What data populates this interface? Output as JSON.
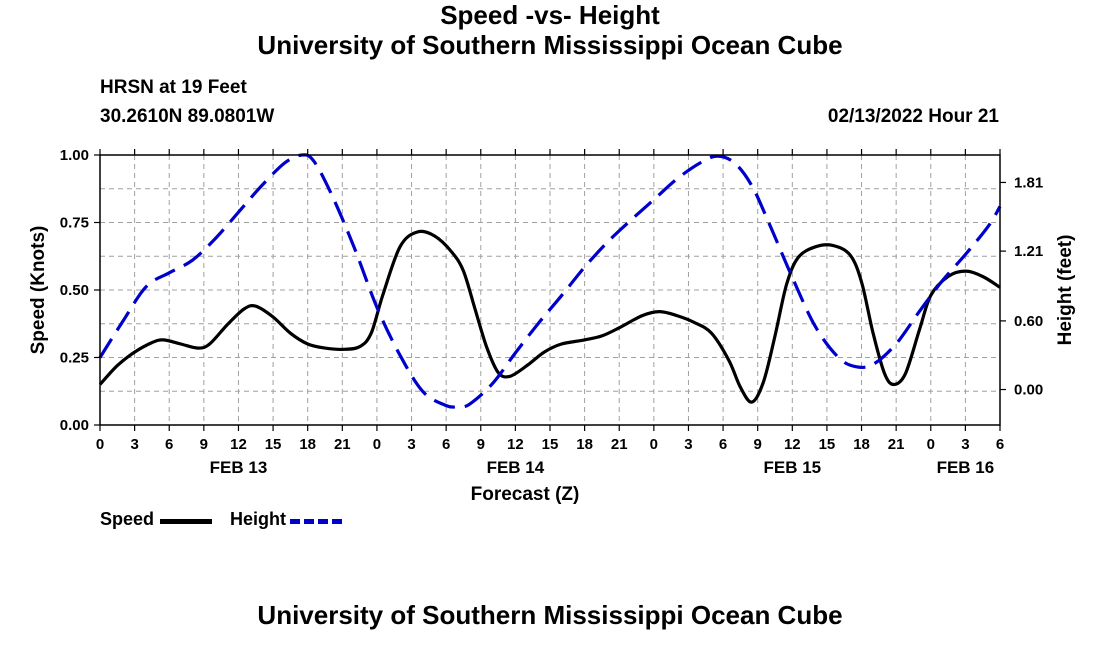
{
  "page": {
    "title": "University of Southern Mississippi Ocean Cube",
    "station": "HRSN at 19 Feet",
    "coords": "30.2610N  89.0801W",
    "subtitle": "Speed -vs- Height",
    "datetime": "02/13/2022 Hour 21",
    "footer_title": "University of Southern Mississippi Ocean Cube"
  },
  "legend": {
    "speed_label": "Speed",
    "height_label": "Height"
  },
  "colors": {
    "speed": "#000000",
    "height": "#0000cc",
    "grid": "#a0a0a0"
  },
  "chart_data": {
    "type": "line",
    "title": "Speed -vs- Height",
    "xlabel": "Forecast (Z)",
    "ylabel": "Speed (Knots)",
    "ylabel_right": "Height (feet)",
    "x_unit": "hours from FEB 13 00Z",
    "xlim": [
      0,
      78
    ],
    "ylim": [
      0,
      1.0
    ],
    "ylim_right": [
      -0.31,
      2.05
    ],
    "x_ticks": [
      {
        "x": 0,
        "label": "0"
      },
      {
        "x": 3,
        "label": "3"
      },
      {
        "x": 6,
        "label": "6"
      },
      {
        "x": 9,
        "label": "9"
      },
      {
        "x": 12,
        "label": "12"
      },
      {
        "x": 15,
        "label": "15"
      },
      {
        "x": 18,
        "label": "18"
      },
      {
        "x": 21,
        "label": "21"
      },
      {
        "x": 24,
        "label": "0"
      },
      {
        "x": 27,
        "label": "3"
      },
      {
        "x": 30,
        "label": "6"
      },
      {
        "x": 33,
        "label": "9"
      },
      {
        "x": 36,
        "label": "12"
      },
      {
        "x": 39,
        "label": "15"
      },
      {
        "x": 42,
        "label": "18"
      },
      {
        "x": 45,
        "label": "21"
      },
      {
        "x": 48,
        "label": "0"
      },
      {
        "x": 51,
        "label": "3"
      },
      {
        "x": 54,
        "label": "6"
      },
      {
        "x": 57,
        "label": "9"
      },
      {
        "x": 60,
        "label": "12"
      },
      {
        "x": 63,
        "label": "15"
      },
      {
        "x": 66,
        "label": "18"
      },
      {
        "x": 69,
        "label": "21"
      },
      {
        "x": 72,
        "label": "0"
      },
      {
        "x": 75,
        "label": "3"
      },
      {
        "x": 78,
        "label": "6"
      }
    ],
    "date_labels": [
      {
        "x": 12,
        "label": "FEB 13"
      },
      {
        "x": 36,
        "label": "FEB 14"
      },
      {
        "x": 60,
        "label": "FEB 15"
      },
      {
        "x": 75,
        "label": "FEB 16"
      }
    ],
    "y_ticks_left": [
      {
        "v": 0.0,
        "label": "0.00"
      },
      {
        "v": 0.25,
        "label": "0.25"
      },
      {
        "v": 0.5,
        "label": "0.50"
      },
      {
        "v": 0.75,
        "label": "0.75"
      },
      {
        "v": 1.0,
        "label": "1.00"
      }
    ],
    "y_ticks_right": [
      {
        "v": 0.0,
        "label": "0.00"
      },
      {
        "v": 0.6,
        "label": "0.60"
      },
      {
        "v": 1.21,
        "label": "1.21"
      },
      {
        "v": 1.81,
        "label": "1.81"
      }
    ],
    "series": [
      {
        "name": "Speed",
        "axis": "left",
        "style": "solid",
        "points": [
          [
            0,
            0.15
          ],
          [
            1.5,
            0.22
          ],
          [
            3,
            0.27
          ],
          [
            4.5,
            0.305
          ],
          [
            5.5,
            0.315
          ],
          [
            7,
            0.3
          ],
          [
            8.5,
            0.285
          ],
          [
            9.5,
            0.3
          ],
          [
            11,
            0.37
          ],
          [
            12.5,
            0.43
          ],
          [
            13.5,
            0.44
          ],
          [
            15,
            0.4
          ],
          [
            16.5,
            0.34
          ],
          [
            18,
            0.3
          ],
          [
            19.5,
            0.285
          ],
          [
            21,
            0.28
          ],
          [
            22.5,
            0.29
          ],
          [
            23.5,
            0.34
          ],
          [
            24.5,
            0.48
          ],
          [
            26,
            0.66
          ],
          [
            27.5,
            0.715
          ],
          [
            29,
            0.7
          ],
          [
            30.5,
            0.64
          ],
          [
            31.5,
            0.57
          ],
          [
            32.5,
            0.43
          ],
          [
            33.5,
            0.29
          ],
          [
            34.5,
            0.195
          ],
          [
            35.5,
            0.18
          ],
          [
            37,
            0.22
          ],
          [
            38.5,
            0.27
          ],
          [
            40,
            0.3
          ],
          [
            42,
            0.315
          ],
          [
            43.5,
            0.33
          ],
          [
            45,
            0.36
          ],
          [
            47,
            0.405
          ],
          [
            48.5,
            0.42
          ],
          [
            50,
            0.405
          ],
          [
            51.5,
            0.38
          ],
          [
            53,
            0.34
          ],
          [
            54.5,
            0.24
          ],
          [
            55.5,
            0.14
          ],
          [
            56.5,
            0.085
          ],
          [
            57.5,
            0.16
          ],
          [
            58.5,
            0.33
          ],
          [
            59.5,
            0.52
          ],
          [
            60.5,
            0.62
          ],
          [
            62,
            0.66
          ],
          [
            63.5,
            0.665
          ],
          [
            65,
            0.63
          ],
          [
            66,
            0.53
          ],
          [
            67,
            0.34
          ],
          [
            68,
            0.19
          ],
          [
            68.8,
            0.15
          ],
          [
            69.8,
            0.19
          ],
          [
            71,
            0.35
          ],
          [
            72,
            0.48
          ],
          [
            73.5,
            0.55
          ],
          [
            75,
            0.57
          ],
          [
            76.5,
            0.55
          ],
          [
            78,
            0.51
          ]
        ]
      },
      {
        "name": "Height",
        "axis": "right",
        "style": "dashed",
        "points": [
          [
            0,
            0.28
          ],
          [
            2,
            0.6
          ],
          [
            4,
            0.9
          ],
          [
            6,
            1.02
          ],
          [
            8,
            1.13
          ],
          [
            10,
            1.32
          ],
          [
            12,
            1.55
          ],
          [
            14,
            1.78
          ],
          [
            16,
            1.98
          ],
          [
            17.5,
            2.05
          ],
          [
            18.5,
            2.0
          ],
          [
            20,
            1.72
          ],
          [
            22,
            1.25
          ],
          [
            24,
            0.72
          ],
          [
            26,
            0.3
          ],
          [
            28,
            -0.02
          ],
          [
            30,
            -0.14
          ],
          [
            31,
            -0.15
          ],
          [
            32,
            -0.13
          ],
          [
            34,
            0.05
          ],
          [
            36,
            0.32
          ],
          [
            38,
            0.58
          ],
          [
            40,
            0.82
          ],
          [
            42,
            1.07
          ],
          [
            44,
            1.29
          ],
          [
            46,
            1.48
          ],
          [
            48,
            1.66
          ],
          [
            50,
            1.84
          ],
          [
            52,
            1.98
          ],
          [
            53.5,
            2.04
          ],
          [
            55,
            1.98
          ],
          [
            56.5,
            1.78
          ],
          [
            58,
            1.45
          ],
          [
            60,
            0.98
          ],
          [
            62,
            0.55
          ],
          [
            64,
            0.28
          ],
          [
            65.5,
            0.2
          ],
          [
            67,
            0.22
          ],
          [
            69,
            0.4
          ],
          [
            71,
            0.68
          ],
          [
            73,
            0.95
          ],
          [
            75,
            1.18
          ],
          [
            77,
            1.43
          ],
          [
            78,
            1.6
          ]
        ]
      }
    ]
  }
}
